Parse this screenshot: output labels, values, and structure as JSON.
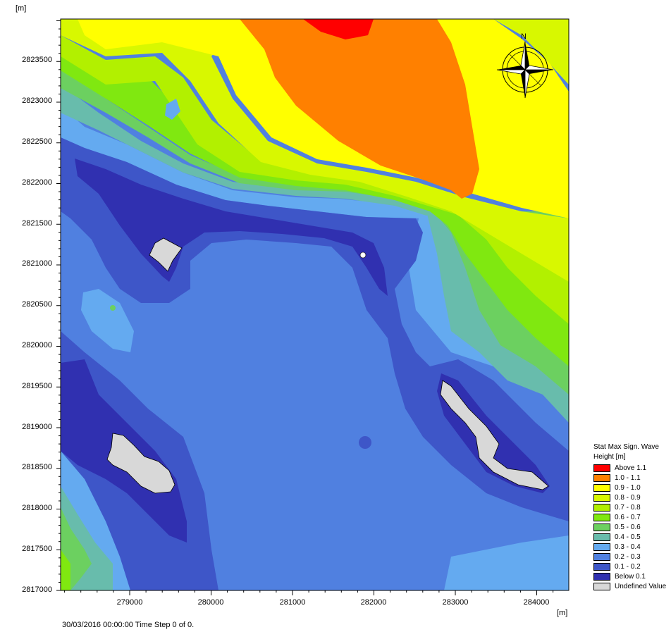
{
  "axes": {
    "y_unit": "[m]",
    "x_unit": "[m]",
    "y_ticks": [
      "2823500",
      "2823000",
      "2822500",
      "2822000",
      "2821500",
      "2821000",
      "2820500",
      "2820000",
      "2819500",
      "2819000",
      "2818500",
      "2818000",
      "2817500",
      "2817000"
    ],
    "x_ticks": [
      "279000",
      "280000",
      "281000",
      "282000",
      "283000",
      "284000"
    ]
  },
  "legend": {
    "title_line1": "Stat Max Sign. Wave",
    "title_line2": "Height [m]",
    "items": [
      {
        "label": "Above 1.1",
        "color": "#ff0000"
      },
      {
        "label": "1.0 - 1.1",
        "color": "#ff8000"
      },
      {
        "label": "0.9 - 1.0",
        "color": "#ffff00"
      },
      {
        "label": "0.8 - 0.9",
        "color": "#d8f800"
      },
      {
        "label": "0.7 - 0.8",
        "color": "#b2f000"
      },
      {
        "label": "0.6 - 0.7",
        "color": "#80e810"
      },
      {
        "label": "0.5 - 0.6",
        "color": "#6cd060"
      },
      {
        "label": "0.4 - 0.5",
        "color": "#68bcac"
      },
      {
        "label": "0.3 - 0.4",
        "color": "#64aaf0"
      },
      {
        "label": "0.2 - 0.3",
        "color": "#5080e0"
      },
      {
        "label": "0.1 - 0.2",
        "color": "#3e56c8"
      },
      {
        "label": "Below  0.1",
        "color": "#3030b0"
      },
      {
        "label": "Undefined Value",
        "color": "#d8d8d8"
      }
    ]
  },
  "compass": {
    "north_label": "N"
  },
  "status": "30/03/2016 00:00:00  Time Step 0 of 0."
}
